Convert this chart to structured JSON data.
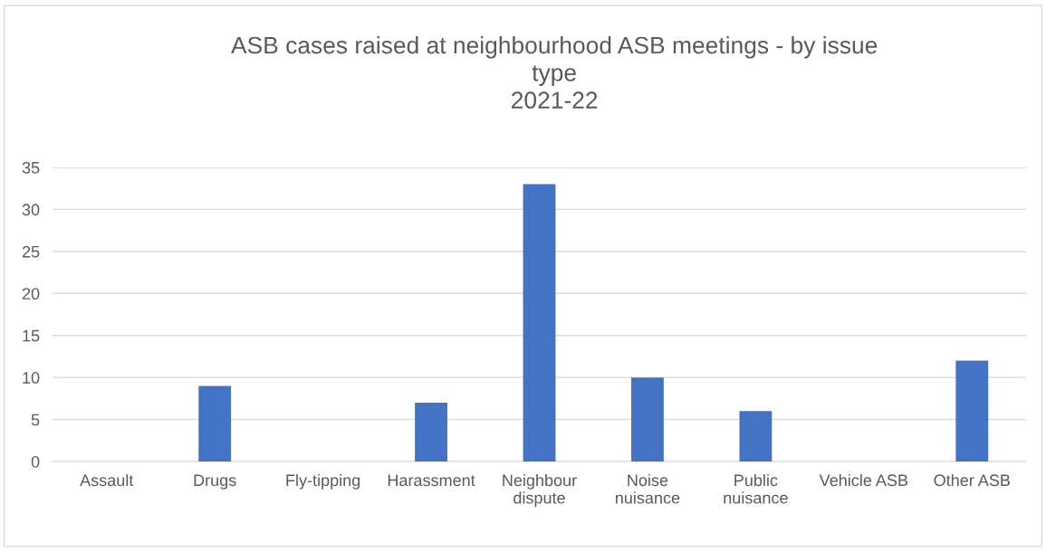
{
  "chart_data": {
    "type": "bar",
    "title": "ASB cases raised at neighbourhood ASB meetings - by issue\ntype\n2021-22",
    "categories": [
      "Assault",
      "Drugs",
      "Fly-tipping",
      "Harassment",
      "Neighbour\ndispute",
      "Noise\nnuisance",
      "Public\nnuisance",
      "Vehicle ASB",
      "Other ASB"
    ],
    "values": [
      0,
      9,
      0,
      7,
      33,
      10,
      6,
      0,
      12
    ],
    "color": "#4472c4",
    "ylim": [
      0,
      35
    ],
    "yticks": [
      0,
      5,
      10,
      15,
      20,
      25,
      30,
      35
    ],
    "grid": "y",
    "legend": false
  }
}
